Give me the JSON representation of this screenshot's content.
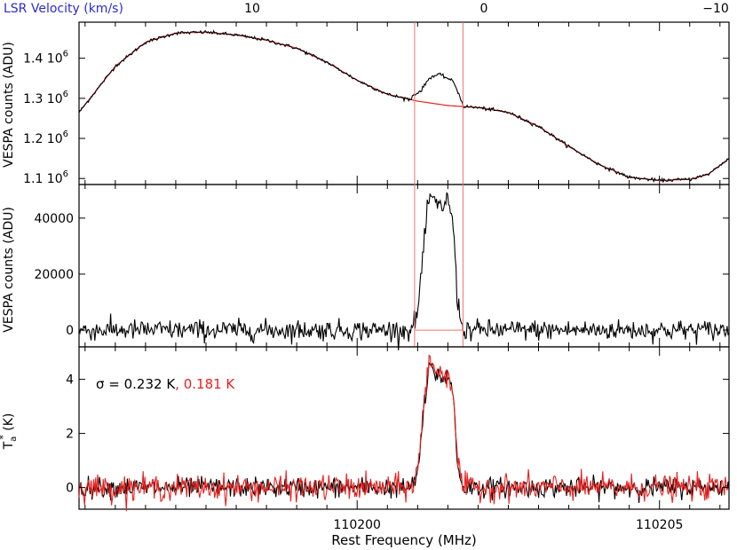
{
  "colors": {
    "data": "#000000",
    "model": "#e8211f",
    "velocity_axis": "#2b2bd6",
    "window": "#f07070"
  },
  "chart_data": [
    {
      "type": "line",
      "panel": "top",
      "top_axis_label": "LSR Velocity (km/s)",
      "top_ticks": [
        {
          "v": 10,
          "label": "10"
        },
        {
          "v": 0,
          "label": "0"
        },
        {
          "v": -10,
          "label": "−10"
        }
      ],
      "ylabel": "VESPA counts (ADU)",
      "xlim": [
        110195.4,
        110206.15
      ],
      "ylim": [
        1.085,
        1.49
      ],
      "yticks": [
        {
          "v": 1.1,
          "label": "1.1 10",
          "sup": "6"
        },
        {
          "v": 1.2,
          "label": "1.2 10",
          "sup": "6"
        },
        {
          "v": 1.3,
          "label": "1.3 10",
          "sup": "6"
        },
        {
          "v": 1.4,
          "label": "1.4 10",
          "sup": "6"
        }
      ],
      "baseline_fit": {
        "x": [
          110195.4,
          110196.0,
          110196.5,
          110197.0,
          110197.5,
          110198.0,
          110198.5,
          110199.0,
          110199.5,
          110200.0,
          110200.5,
          110201.0,
          110201.5,
          110202.0,
          110202.5,
          110203.0,
          110203.5,
          110204.0,
          110204.5,
          110205.0,
          110205.5,
          110205.8,
          110206.15
        ],
        "y": [
          1.265,
          1.38,
          1.44,
          1.463,
          1.465,
          1.458,
          1.445,
          1.425,
          1.39,
          1.345,
          1.31,
          1.293,
          1.282,
          1.277,
          1.265,
          1.23,
          1.18,
          1.135,
          1.103,
          1.095,
          1.098,
          1.11,
          1.15
        ]
      },
      "line_feature": {
        "x": [
          110200.9,
          110201.05,
          110201.2,
          110201.35,
          110201.5,
          110201.6,
          110201.75
        ],
        "y": [
          1.306,
          1.318,
          1.352,
          1.36,
          1.35,
          1.34,
          1.285
        ]
      },
      "noise": 0.002
    },
    {
      "type": "line",
      "panel": "middle",
      "ylabel": "VESPA counts (ADU)",
      "xlim": [
        110195.4,
        110206.15
      ],
      "ylim": [
        -6000,
        52000
      ],
      "yticks": [
        {
          "v": 0,
          "label": "0"
        },
        {
          "v": 20000,
          "label": "20000"
        },
        {
          "v": 40000,
          "label": "40000"
        }
      ],
      "series": [
        {
          "x": [
            110200.9,
            110201.0,
            110201.1,
            110201.2,
            110201.3,
            110201.4,
            110201.5,
            110201.6,
            110201.65,
            110201.75
          ],
          "y": [
            0,
            6000,
            30000,
            48500,
            44500,
            44000,
            47000,
            36000,
            12000,
            0
          ]
        }
      ],
      "noise": 1800
    },
    {
      "type": "line",
      "panel": "bottom",
      "ylabel": "T",
      "ylabel_sub": "a",
      "ylabel_sup": "*",
      "ylabel_unit": " (K)",
      "xlabel": "Rest Frequency (MHz)",
      "xlim": [
        110195.4,
        110206.15
      ],
      "ylim": [
        -0.8,
        5.2
      ],
      "yticks": [
        {
          "v": 0,
          "label": "0"
        },
        {
          "v": 2,
          "label": "2"
        },
        {
          "v": 4,
          "label": "4"
        }
      ],
      "xticks": [
        {
          "v": 110200,
          "label": "110200"
        },
        {
          "v": 110205,
          "label": "110205"
        }
      ],
      "annotation": {
        "sigma_symbol": "σ",
        "black": " = 0.232 K",
        "red": ", 0.181 K"
      },
      "series": [
        {
          "x": [
            110200.9,
            110201.0,
            110201.1,
            110201.2,
            110201.3,
            110201.4,
            110201.5,
            110201.6,
            110201.65,
            110201.75
          ],
          "y": [
            0,
            0.6,
            3.0,
            4.8,
            4.4,
            4.1,
            4.3,
            3.4,
            1.1,
            0
          ],
          "noise": 0.232
        },
        {
          "x": [
            110200.9,
            110201.0,
            110201.1,
            110201.2,
            110201.3,
            110201.4,
            110201.5,
            110201.6,
            110201.65,
            110201.75
          ],
          "y": [
            0,
            0.5,
            2.8,
            4.5,
            4.2,
            4.0,
            4.2,
            3.3,
            1.0,
            0
          ],
          "noise": 0.181
        }
      ]
    }
  ],
  "window": {
    "x": [
      110200.95,
      110201.75
    ]
  }
}
